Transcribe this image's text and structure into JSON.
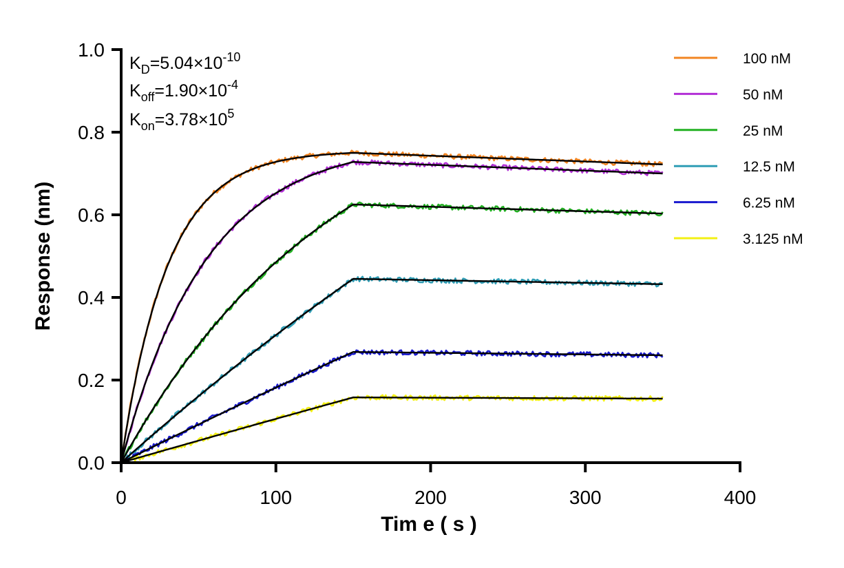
{
  "chart_data": {
    "type": "line",
    "xlabel": "Tim e ( s )",
    "ylabel": "Response (nm)",
    "xlim": [
      0,
      400
    ],
    "ylim": [
      0,
      1.0
    ],
    "xticks": [
      "0",
      "100",
      "200",
      "300",
      "400"
    ],
    "yticks": [
      "0.0",
      "0.2",
      "0.4",
      "0.6",
      "0.8",
      "1.0"
    ],
    "legend_position": "right",
    "annotations": {
      "kd": {
        "main": "K",
        "sub": "D",
        "value": "=5.04×10",
        "exp": "-10"
      },
      "koff": {
        "main": "K",
        "sub": "off",
        "value": "=1.90×10",
        "exp": "-4"
      },
      "kon": {
        "main": "K",
        "sub": "on",
        "value": "=3.78×10",
        "exp": "5"
      }
    },
    "association_end_s": 150,
    "end_s": 350,
    "fit_color": "#000000",
    "series": [
      {
        "name": "100 nM",
        "color": "#F28522",
        "peak": 0.75,
        "end": 0.722,
        "tau": 30
      },
      {
        "name": "50 nM",
        "color": "#B22FD6",
        "peak": 0.728,
        "end": 0.7,
        "tau": 55
      },
      {
        "name": "25 nM",
        "color": "#22B122",
        "peak": 0.625,
        "end": 0.603,
        "tau": 140
      },
      {
        "name": "12.5 nM",
        "color": "#2F9DB5",
        "peak": 0.445,
        "end": 0.432,
        "tau": 600
      },
      {
        "name": "6.25 nM",
        "color": "#1A1ACF",
        "peak": 0.268,
        "end": 0.26,
        "tau": 1500
      },
      {
        "name": "3.125 nM",
        "color": "#F3F014",
        "peak": 0.158,
        "end": 0.155,
        "tau": 4000
      }
    ]
  }
}
